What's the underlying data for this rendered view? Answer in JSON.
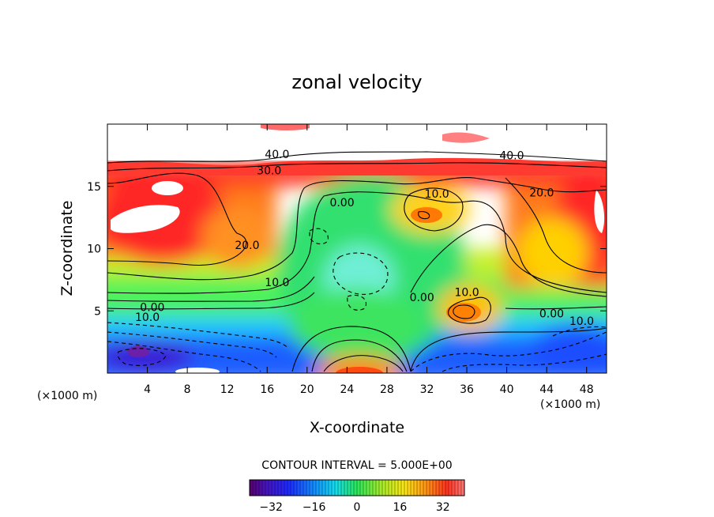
{
  "chart_data": {
    "type": "heatmap",
    "title": "zonal velocity",
    "xlabel": "X-coordinate",
    "ylabel": "Z-coordinate",
    "x_unit_left": "(×1000 m)",
    "x_unit_right": "(×1000 m)",
    "xlim": [
      0,
      50
    ],
    "ylim": [
      0,
      20
    ],
    "x_ticks": [
      4,
      8,
      12,
      16,
      20,
      24,
      28,
      32,
      36,
      40,
      44,
      48
    ],
    "y_ticks": [
      5,
      10,
      15
    ],
    "contour_interval_label": "CONTOUR INTERVAL = 5.000E+00",
    "contour_interval": 5.0,
    "contour_labels": [
      {
        "text": "40.0",
        "x": 17.0,
        "y": 17.6
      },
      {
        "text": "40.0",
        "x": 40.5,
        "y": 17.5
      },
      {
        "text": "30.0",
        "x": 16.2,
        "y": 16.3
      },
      {
        "text": "20.0",
        "x": 43.5,
        "y": 14.5
      },
      {
        "text": "10.0",
        "x": 33.0,
        "y": 14.4
      },
      {
        "text": "0.00",
        "x": 23.5,
        "y": 13.7
      },
      {
        "text": "20.0",
        "x": 14.0,
        "y": 10.3
      },
      {
        "text": "10.0",
        "x": 17.0,
        "y": 7.3
      },
      {
        "text": "0.00",
        "x": 31.5,
        "y": 6.1
      },
      {
        "text": "10.0",
        "x": 36.0,
        "y": 6.5
      },
      {
        "text": "0.00",
        "x": 4.5,
        "y": 5.3
      },
      {
        "text": "10.0",
        "x": 4.0,
        "y": 4.5
      },
      {
        "text": "0.00",
        "x": 44.5,
        "y": 4.8
      },
      {
        "text": "10.0",
        "x": 47.5,
        "y": 4.2
      }
    ],
    "colorbar": {
      "ticks": [
        -32,
        -16,
        0,
        16,
        32
      ],
      "range": [
        -40,
        40
      ]
    }
  }
}
